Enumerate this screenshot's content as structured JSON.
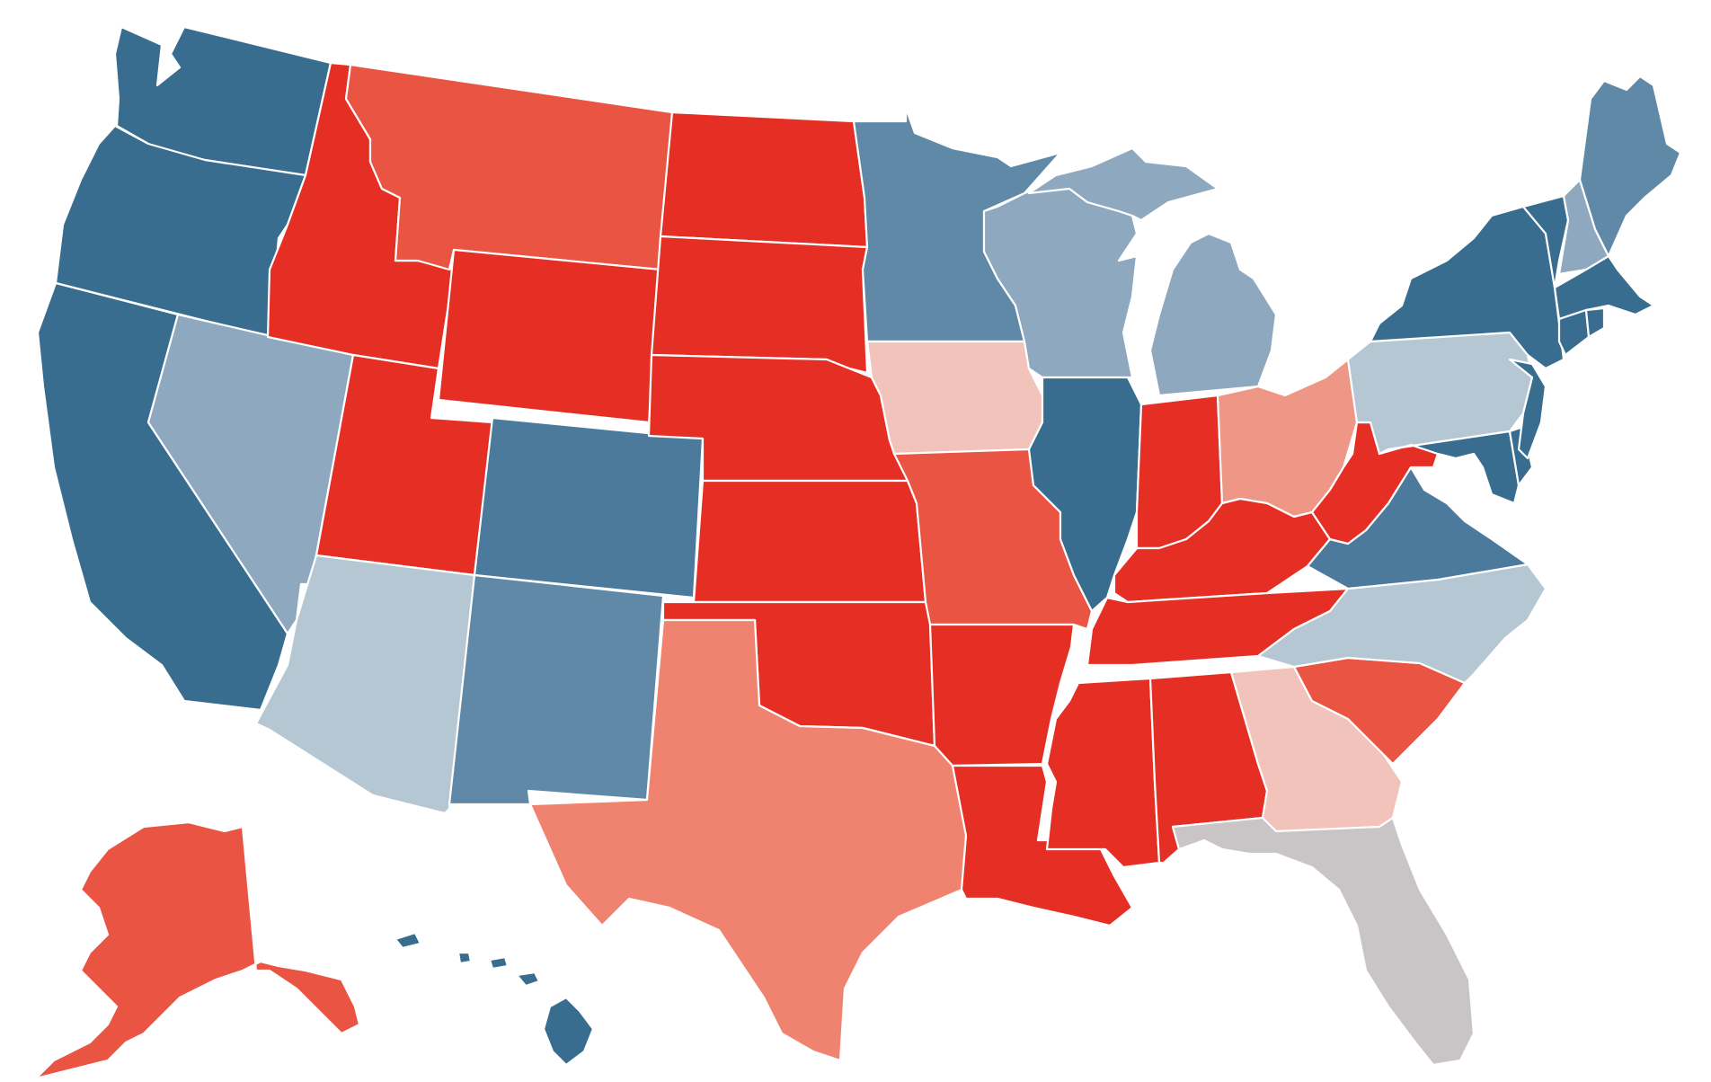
{
  "palette": {
    "safe_dem": "#386d90",
    "likely_dem": "#4b7a9d",
    "lean_dem": "#6089a7",
    "tilt_dem": "#8ea8c0",
    "toss_dem": "#b6c7d4",
    "toss_up": "#c9c5c6",
    "toss_rep": "#f2c3bb",
    "tilt_rep": "#ef9786",
    "lean_rep": "#ef8370",
    "likely_rep": "#ea5443",
    "safe_rep": "#e52f25"
  },
  "states": [
    {
      "code": "WA",
      "category": "safe_dem"
    },
    {
      "code": "OR",
      "category": "safe_dem"
    },
    {
      "code": "CA",
      "category": "safe_dem"
    },
    {
      "code": "NV",
      "category": "tilt_dem"
    },
    {
      "code": "ID",
      "category": "safe_rep"
    },
    {
      "code": "MT",
      "category": "likely_rep"
    },
    {
      "code": "WY",
      "category": "safe_rep"
    },
    {
      "code": "UT",
      "category": "safe_rep"
    },
    {
      "code": "AZ",
      "category": "toss_dem"
    },
    {
      "code": "CO",
      "category": "likely_dem"
    },
    {
      "code": "NM",
      "category": "lean_dem"
    },
    {
      "code": "ND",
      "category": "safe_rep"
    },
    {
      "code": "SD",
      "category": "safe_rep"
    },
    {
      "code": "NE",
      "category": "safe_rep"
    },
    {
      "code": "KS",
      "category": "safe_rep"
    },
    {
      "code": "OK",
      "category": "safe_rep"
    },
    {
      "code": "TX",
      "category": "lean_rep"
    },
    {
      "code": "MN",
      "category": "lean_dem"
    },
    {
      "code": "IA",
      "category": "toss_rep"
    },
    {
      "code": "MO",
      "category": "likely_rep"
    },
    {
      "code": "AR",
      "category": "safe_rep"
    },
    {
      "code": "LA",
      "category": "safe_rep"
    },
    {
      "code": "WI",
      "category": "tilt_dem"
    },
    {
      "code": "IL",
      "category": "safe_dem"
    },
    {
      "code": "MI",
      "category": "tilt_dem"
    },
    {
      "code": "IN",
      "category": "safe_rep"
    },
    {
      "code": "OH",
      "category": "tilt_rep"
    },
    {
      "code": "KY",
      "category": "safe_rep"
    },
    {
      "code": "TN",
      "category": "safe_rep"
    },
    {
      "code": "MS",
      "category": "safe_rep"
    },
    {
      "code": "AL",
      "category": "safe_rep"
    },
    {
      "code": "GA",
      "category": "toss_rep"
    },
    {
      "code": "FL",
      "category": "toss_up"
    },
    {
      "code": "SC",
      "category": "likely_rep"
    },
    {
      "code": "NC",
      "category": "toss_dem"
    },
    {
      "code": "VA",
      "category": "likely_dem"
    },
    {
      "code": "WV",
      "category": "safe_rep"
    },
    {
      "code": "MD",
      "category": "safe_dem"
    },
    {
      "code": "DE",
      "category": "safe_dem"
    },
    {
      "code": "PA",
      "category": "toss_dem"
    },
    {
      "code": "NJ",
      "category": "safe_dem"
    },
    {
      "code": "NY",
      "category": "safe_dem"
    },
    {
      "code": "CT",
      "category": "safe_dem"
    },
    {
      "code": "RI",
      "category": "safe_dem"
    },
    {
      "code": "MA",
      "category": "safe_dem"
    },
    {
      "code": "VT",
      "category": "safe_dem"
    },
    {
      "code": "NH",
      "category": "tilt_dem"
    },
    {
      "code": "ME",
      "category": "lean_dem"
    },
    {
      "code": "AK",
      "category": "likely_rep"
    },
    {
      "code": "HI",
      "category": "safe_dem"
    }
  ]
}
